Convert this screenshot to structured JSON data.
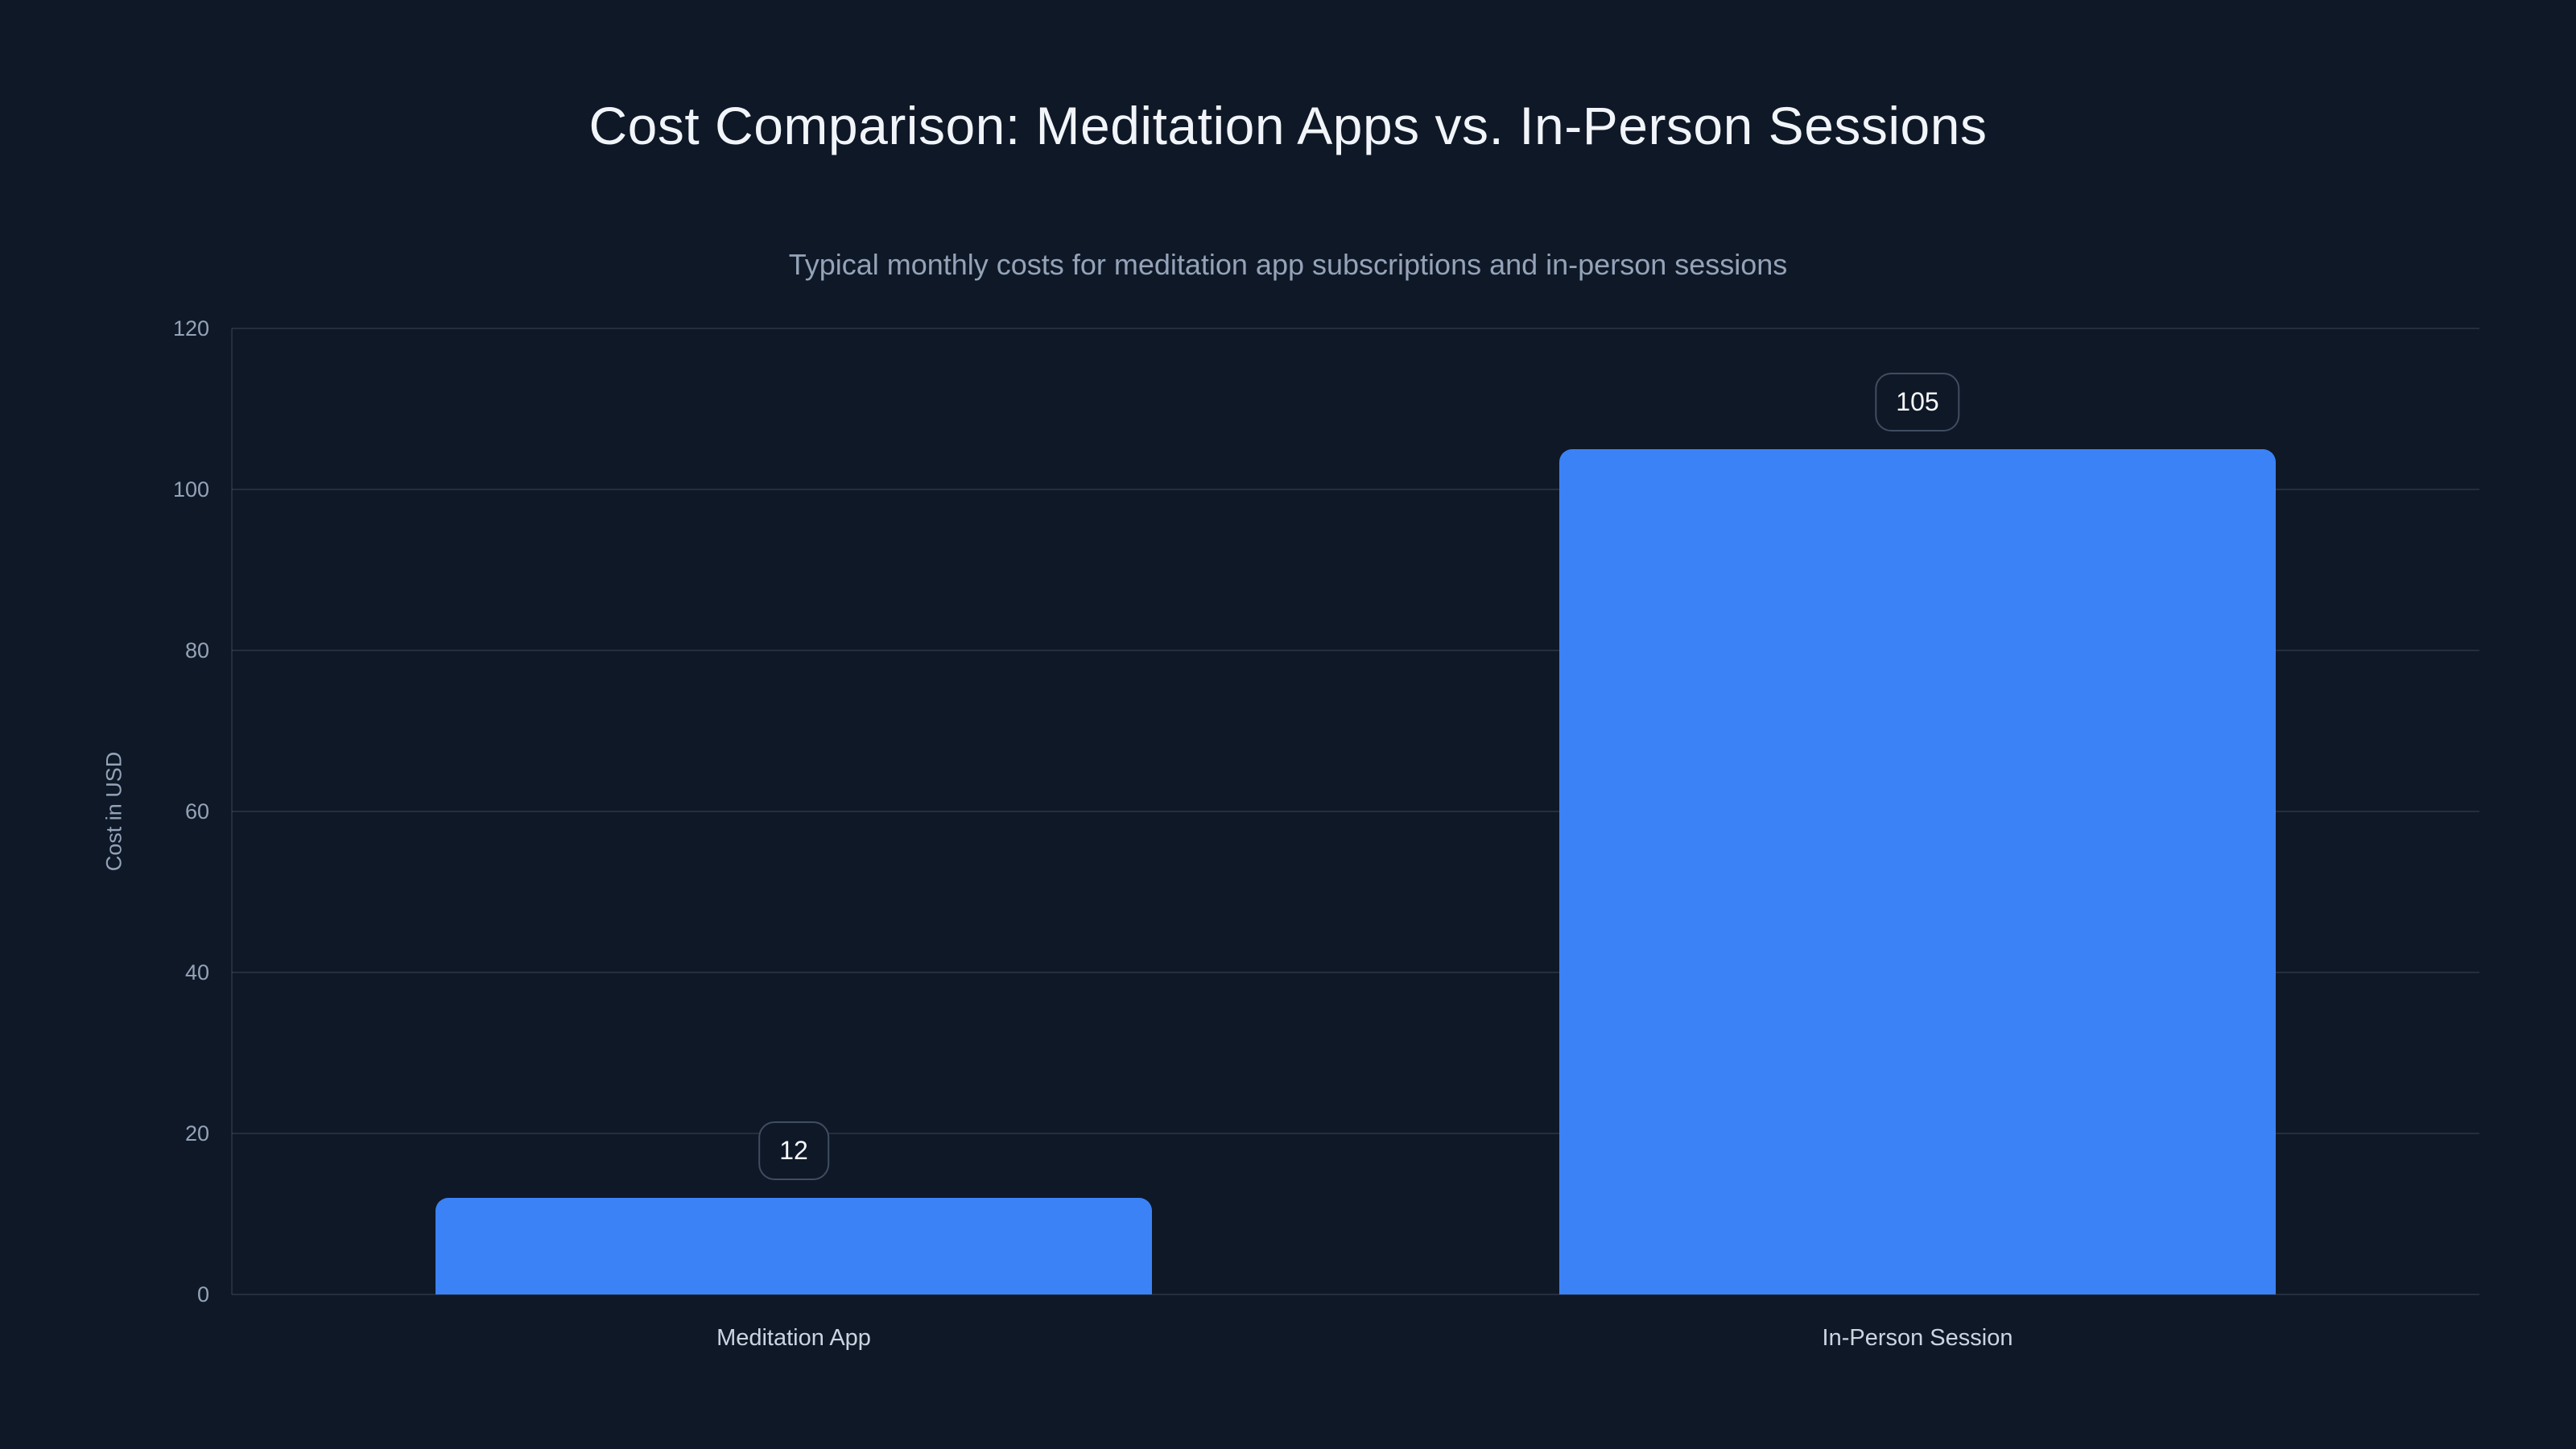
{
  "chart_data": {
    "type": "bar",
    "title": "Cost Comparison: Meditation Apps vs. In-Person Sessions",
    "subtitle": "Typical monthly costs for meditation app subscriptions and in-person sessions",
    "categories": [
      "Meditation App",
      "In-Person Session"
    ],
    "values": [
      12,
      105
    ],
    "value_labels": [
      "12",
      "105"
    ],
    "xlabel": "",
    "ylabel": "Cost in USD",
    "ylim": [
      0,
      120
    ],
    "yticks": [
      0,
      20,
      40,
      60,
      80,
      100,
      120
    ],
    "grid": true,
    "legend": false
  },
  "colors": {
    "background": "#0f1827",
    "bar": "#3b82f6",
    "title": "#f1f5f9",
    "subtitle": "#94a3b8",
    "tick_label": "#94a3b8",
    "category_label": "#cbd5e1",
    "gridline": "rgba(148,163,184,0.16)",
    "badge_border": "#404c60",
    "badge_text": "#f8fafc"
  }
}
